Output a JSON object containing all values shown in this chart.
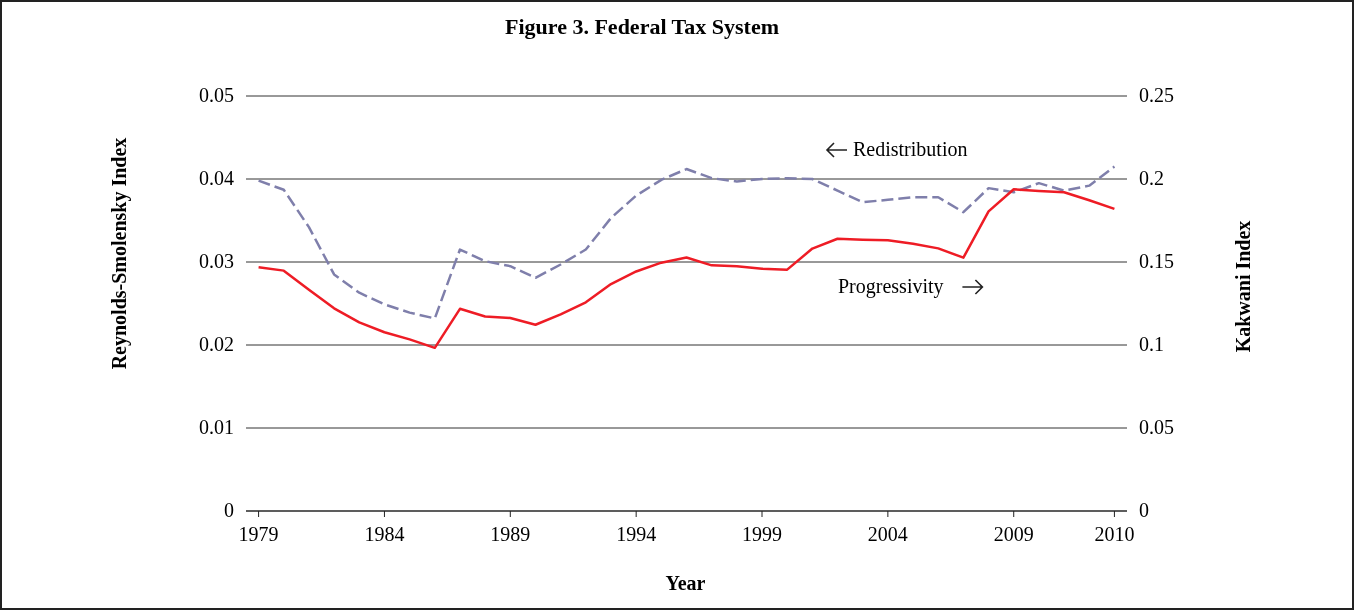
{
  "chart_data": {
    "type": "line",
    "title": "Figure 3. Federal Tax System",
    "xlabel": "Year",
    "ylabel": "Reynolds-Smolensky Index",
    "y2label": "Kakwani Index",
    "categories": [
      "1979",
      null,
      null,
      null,
      null,
      "1984",
      null,
      null,
      null,
      null,
      "1989",
      null,
      null,
      null,
      null,
      "1994",
      null,
      null,
      null,
      null,
      "1999",
      null,
      null,
      null,
      null,
      "2004",
      null,
      null,
      null,
      null,
      "2009",
      null,
      null,
      null,
      "2010"
    ],
    "ylim": [
      0,
      0.05
    ],
    "yticks": [
      0,
      0.01,
      0.02,
      0.03,
      0.04,
      0.05
    ],
    "y2lim": [
      0,
      0.25
    ],
    "y2ticks": [
      0,
      0.05,
      0.1,
      0.15,
      0.2,
      0.25
    ],
    "grid": "y",
    "legend": false,
    "marker": "none",
    "series": [
      {
        "name": "Redistribution",
        "color": "#7f7fab",
        "line_style": "dashed",
        "values": [
          0.0398,
          0.0387,
          0.0342,
          0.0285,
          0.0263,
          0.0249,
          0.0239,
          0.0232,
          0.0315,
          0.0301,
          0.0295,
          0.0281,
          0.0297,
          0.0315,
          0.0353,
          0.038,
          0.0399,
          0.0412,
          0.0401,
          0.0397,
          0.04,
          0.0401,
          0.04,
          0.0386,
          0.0372,
          0.0375,
          0.0378,
          0.0378,
          0.036,
          0.0389,
          0.0384,
          0.0395,
          0.0386,
          0.0392,
          0.0415
        ]
      },
      {
        "name": "Progressivity",
        "color": "#ee1c25",
        "line_style": "solid",
        "axis": "y2",
        "values": [
          0.1468,
          0.1448,
          0.1333,
          0.1221,
          0.1136,
          0.1077,
          0.1034,
          0.0983,
          0.1218,
          0.1172,
          0.1163,
          0.1122,
          0.1185,
          0.1257,
          0.1367,
          0.1443,
          0.1496,
          0.1527,
          0.148,
          0.1475,
          0.1459,
          0.1454,
          0.1581,
          0.164,
          0.1634,
          0.1631,
          0.161,
          0.1582,
          0.1526,
          0.1805,
          0.1938,
          0.1928,
          0.192,
          0.1872,
          0.182
        ]
      }
    ]
  }
}
